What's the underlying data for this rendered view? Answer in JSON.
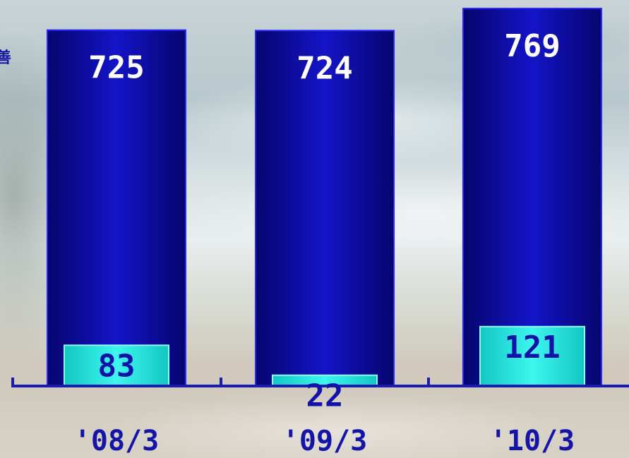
{
  "chart_data": {
    "type": "bar",
    "categories": [
      "'08/3",
      "'09/3",
      "'10/3"
    ],
    "series": [
      {
        "values": [
          725,
          724,
          769
        ],
        "color": "#0a0aa0"
      },
      {
        "values": [
          83,
          22,
          121
        ],
        "color": "#1fd6d2"
      }
    ],
    "ylim": [
      0,
      769
    ],
    "grid": false,
    "legend": "none"
  },
  "edge_text": "善",
  "colors": {
    "axis": "#1b1bb0",
    "outer_bar_border": "#2828ff",
    "inner_bar_border": "#8ffcf4",
    "value_label_light": "#ffffff",
    "value_label_dark": "#1212a8",
    "category_label": "#1414a8"
  }
}
